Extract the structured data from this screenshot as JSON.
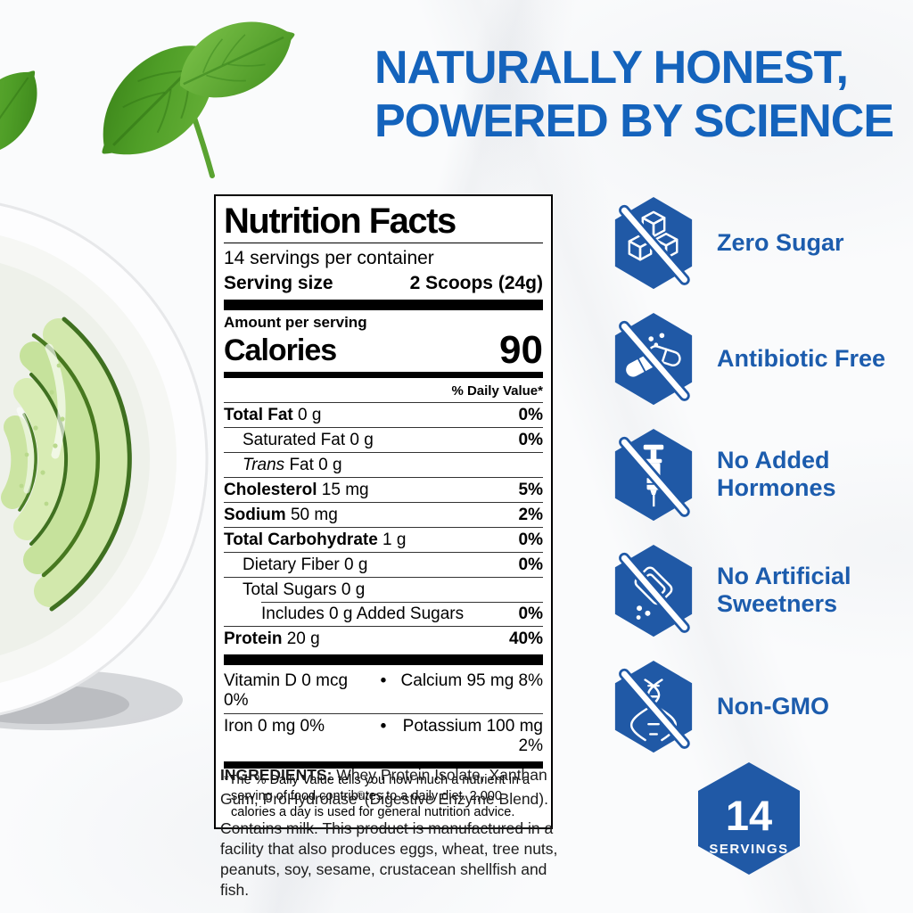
{
  "colors": {
    "headline_blue": "#1463BC",
    "badge_blue": "#2059A6",
    "text_blue": "#1C5CAD"
  },
  "headline": {
    "line1": "NATURALLY HONEST,",
    "line2": "POWERED BY SCIENCE"
  },
  "nutrition_label": {
    "title": "Nutrition Facts",
    "servings_per_container": "14 servings per container",
    "serving_size_label": "Serving size",
    "serving_size_value": "2 Scoops (24g)",
    "amount_per_serving": "Amount per serving",
    "calories_label": "Calories",
    "calories_value": "90",
    "daily_value_header": "% Daily Value*",
    "bullet": "•",
    "rows": [
      {
        "name": "Total Fat",
        "amount": "0 g",
        "dv": "0%",
        "bold": true,
        "indent": 0
      },
      {
        "name": "Saturated Fat",
        "amount": "0 g",
        "dv": "0%",
        "bold": false,
        "indent": 1
      },
      {
        "italic_prefix": "Trans",
        "name": " Fat",
        "amount": "0 g",
        "dv": "",
        "bold": false,
        "indent": 1
      },
      {
        "name": "Cholesterol",
        "amount": "15 mg",
        "dv": "5%",
        "bold": true,
        "indent": 0
      },
      {
        "name": "Sodium",
        "amount": "50 mg",
        "dv": "2%",
        "bold": true,
        "indent": 0
      },
      {
        "name": "Total Carbohydrate",
        "amount": "1 g",
        "dv": "0%",
        "bold": true,
        "indent": 0
      },
      {
        "name": "Dietary Fiber",
        "amount": "0 g",
        "dv": "0%",
        "bold": false,
        "indent": 1
      },
      {
        "name": "Total Sugars",
        "amount": "0 g",
        "dv": "",
        "bold": false,
        "indent": 1
      },
      {
        "name": "Includes 0 g Added Sugars",
        "amount": "",
        "dv": "0%",
        "bold": false,
        "indent": 2,
        "inset": true
      },
      {
        "name": "Protein",
        "amount": "20 g",
        "dv": "40%",
        "bold": true,
        "indent": 0
      }
    ],
    "micros": [
      {
        "left": "Vitamin D 0 mcg 0%",
        "right": "Calcium 95 mg 8%"
      },
      {
        "left": "Iron 0 mg 0%",
        "right": "Potassium 100 mg 2%"
      }
    ],
    "footnote": "*The % Daily Value tells you how much a nutrient in a serving of food contributes to a daily diet. 2,000 calories a day is used for general nutrition advice."
  },
  "ingredients": {
    "label": "INGREDIENTS:",
    "part1": " Whey Protein Isolate, Xanthan Gum, ProHydrolase",
    "reg": "®",
    "part2": "(Digestive Enzyme Blend).",
    "allergen": "Contains milk. This product is manufactured in a facility that also produces eggs, wheat, tree nuts, peanuts, soy, sesame, crustacean shellfish and fish."
  },
  "badges": [
    {
      "label": "Zero Sugar",
      "icon": "no-sugar-icon"
    },
    {
      "label": "Antibiotic Free",
      "icon": "no-antibiotic-icon"
    },
    {
      "label": "No Added Hormones",
      "icon": "no-hormones-icon"
    },
    {
      "label": "No Artificial Sweetners",
      "icon": "no-artificial-sweeteners-icon"
    },
    {
      "label": "Non-GMO",
      "icon": "non-gmo-icon"
    }
  ],
  "servings_badge": {
    "number": "14",
    "label": "SERVINGS"
  }
}
